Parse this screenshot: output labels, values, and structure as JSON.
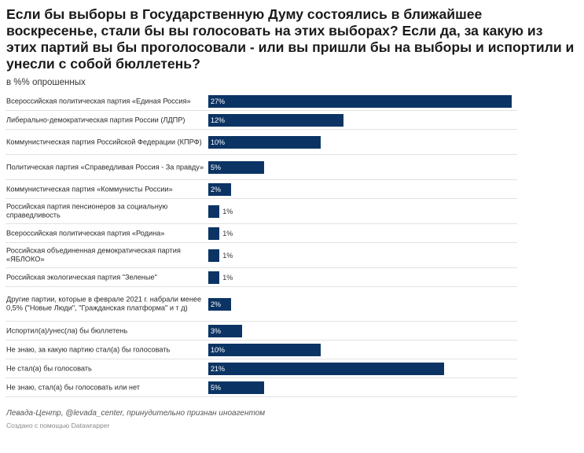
{
  "title": "Если бы выборы в Государственную Думу состоялись в ближайшее воскресенье, стали бы вы голосовать на этих выборах? Если да, за какую из этих партий вы бы проголосовали - или вы пришли бы на выборы и испортили и унесли с собой бюллетень?",
  "subtitle": "в %% опрошенных",
  "source": "Левада-Центр, @levada_center, принудительно признан иноагентом",
  "credit": "Создано с помощью Datawrapper",
  "colors": {
    "bar": "#0b3464"
  },
  "chart_data": {
    "type": "bar",
    "orientation": "horizontal",
    "categories": [
      "Всероссийская политическая партия «Единая Россия»",
      "Либерально-демократическая партия России (ЛДПР)",
      "Коммунистическая партия Российской Федерации (КПРФ)",
      "Политическая партия «Справедливая Россия - За правду»",
      "Коммунистическая партия «Коммунисты России»",
      "Российская партия пенсионеров за социальную справедливость",
      "Всероссийская политическая партия «Родина»",
      "Российская объединенная демократическая партия «ЯБЛОКО»",
      "Российская экологическая партия \"Зеленые\"",
      "Другие партии, которые в феврале 2021 г. набрали менее 0,5% (\"Новые Люди\", \"Гражданская платформа\" и т д)",
      "Испортил(а)/унес(ла) бы бюллетень",
      "Не знаю, за какую партию стал(а) бы голосовать",
      "Не стал(а) бы голосовать",
      "Не знаю, стал(а) бы голосовать или нет"
    ],
    "values": [
      27,
      12,
      10,
      5,
      2,
      1,
      1,
      1,
      1,
      2,
      3,
      10,
      21,
      5
    ],
    "value_labels": [
      "27%",
      "12%",
      "10%",
      "5%",
      "2%",
      "1%",
      "1%",
      "1%",
      "1%",
      "2%",
      "3%",
      "10%",
      "21%",
      "5%"
    ],
    "xlim": [
      0,
      27
    ],
    "grid": false
  }
}
